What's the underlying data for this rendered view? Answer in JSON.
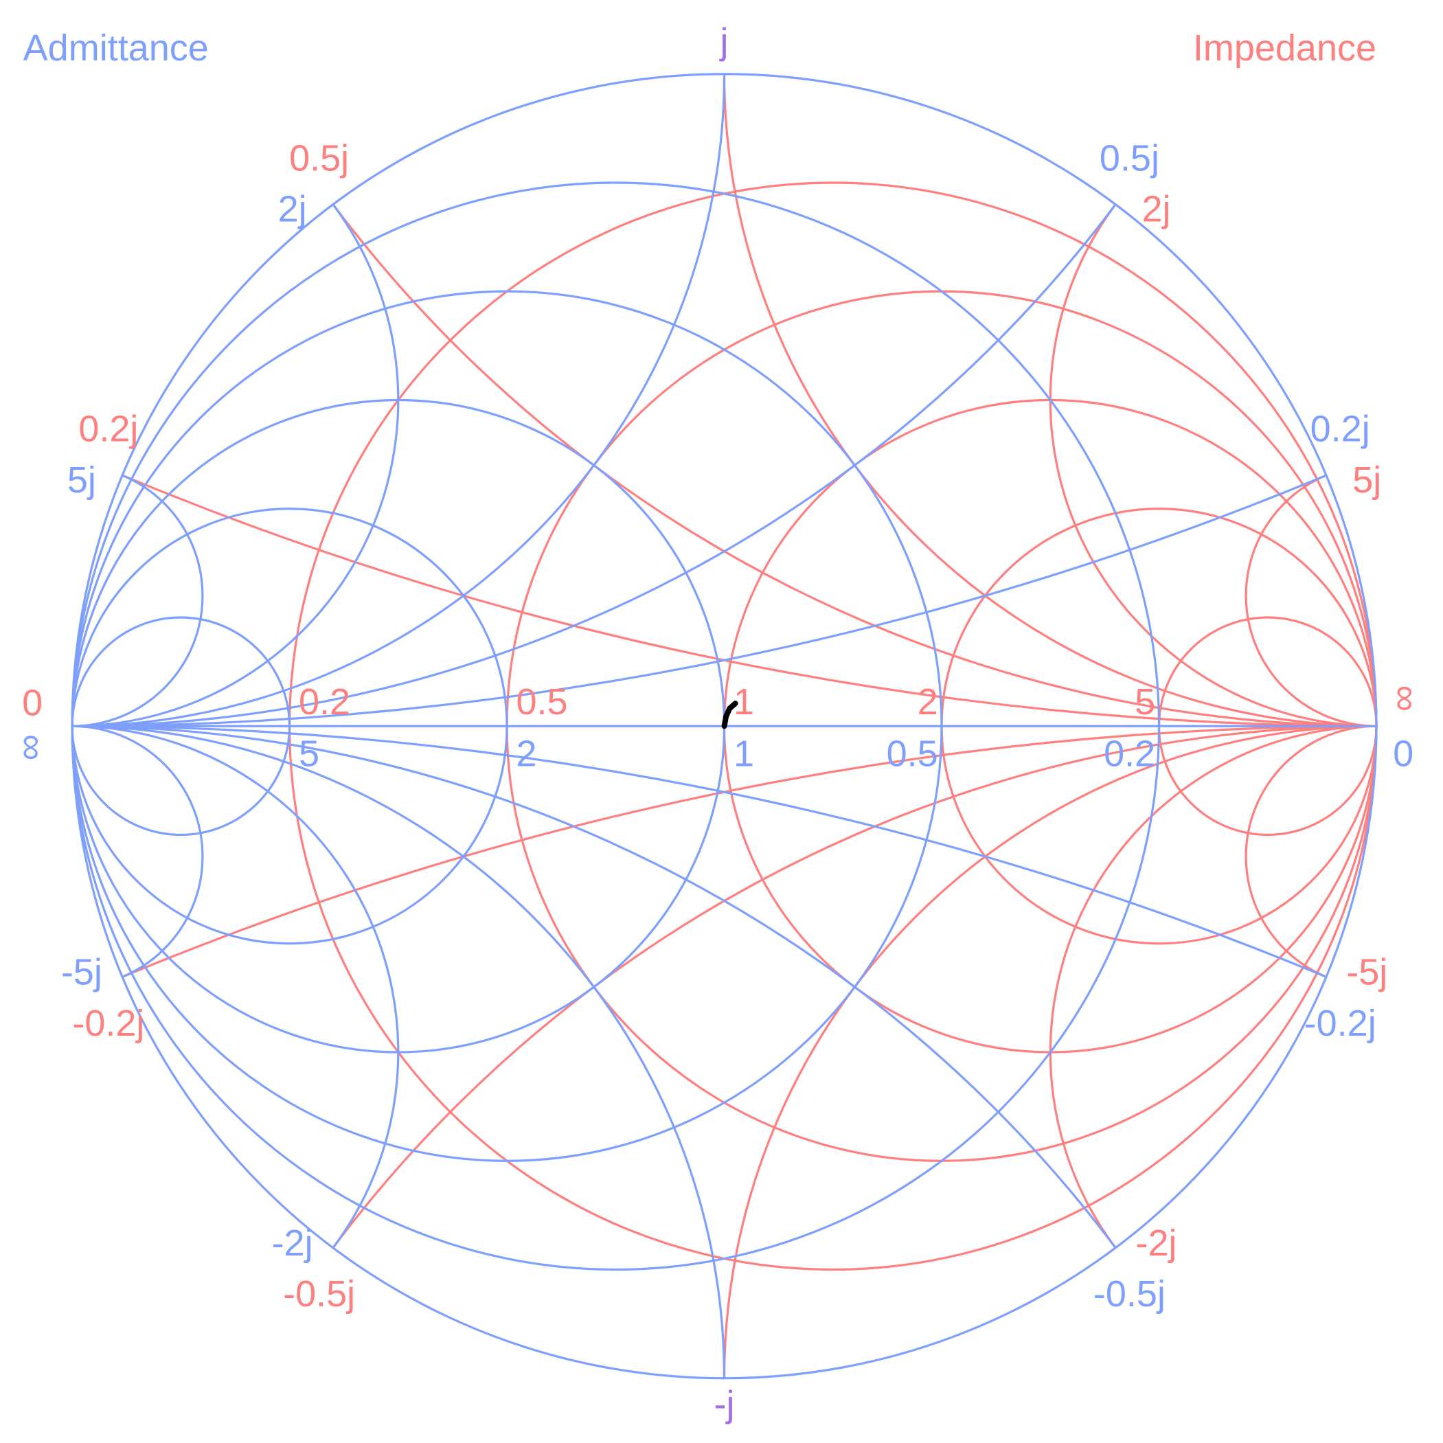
{
  "chart_data": {
    "type": "smith",
    "colors": {
      "impedance": "#ff7f7f",
      "admittance": "#7f9fff",
      "imaginary_axis_label": "#a070e8",
      "trace": "#000000"
    },
    "impedance": {
      "title": "Impedance",
      "resistance_circles": [
        0.2,
        0.5,
        1,
        2,
        5
      ],
      "reactance_arcs": [
        0.2,
        0.5,
        1,
        2,
        5,
        -0.2,
        -0.5,
        -1,
        -2,
        -5
      ],
      "resistance_labels": [
        "0.2",
        "0.5",
        "1",
        "2",
        "5"
      ],
      "reactance_labels": {
        "0.2": "0.2j",
        "0.5": "0.5j",
        "2": "2j",
        "5": "5j",
        "-0.2": "-0.2j",
        "-0.5": "-0.5j",
        "-2": "-2j",
        "-5": "-5j"
      },
      "left_end_label": "0",
      "right_end_label": "∞"
    },
    "admittance": {
      "title": "Admittance",
      "conductance_circles": [
        0.2,
        0.5,
        1,
        2,
        5
      ],
      "susceptance_arcs": [
        0.2,
        0.5,
        1,
        2,
        5,
        -0.2,
        -0.5,
        -1,
        -2,
        -5
      ],
      "conductance_labels": [
        "0.2",
        "0.5",
        "1",
        "2",
        "5"
      ],
      "susceptance_labels": {
        "0.2": "0.2j",
        "0.5": "0.5j",
        "2": "2j",
        "5": "5j",
        "-0.2": "-0.2j",
        "-0.5": "-0.5j",
        "-2": "-2j",
        "-5": "-5j"
      },
      "left_end_label": "∞",
      "right_end_label": "0"
    },
    "top_label": "j",
    "bottom_label": "-j",
    "trace": {
      "z_real": [
        1.0,
        1.005,
        1.015,
        1.032
      ],
      "z_imag": [
        0.0,
        0.03,
        0.055,
        0.072
      ]
    }
  }
}
